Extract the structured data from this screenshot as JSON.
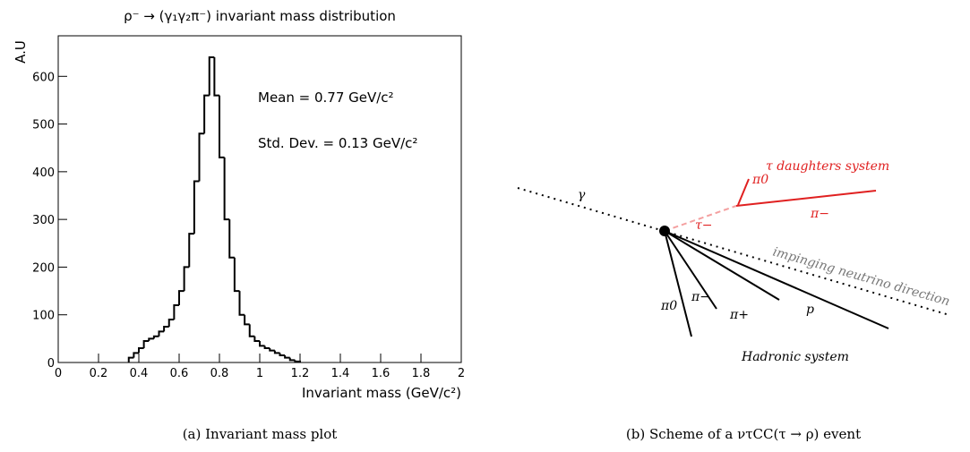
{
  "chart_data": {
    "type": "histogram",
    "title": "ρ⁻ → (γ₁γ₂π⁻) invariant mass distribution",
    "x_label": "Invariant mass (GeV/c²)",
    "y_label": "A.U",
    "annotations": [
      "Mean = 0.77 GeV/c²",
      "Std. Dev. = 0.13 GeV/c²"
    ],
    "bins": [
      0.35,
      0.375,
      0.4,
      0.425,
      0.45,
      0.475,
      0.5,
      0.525,
      0.55,
      0.575,
      0.6,
      0.625,
      0.65,
      0.675,
      0.7,
      0.725,
      0.75,
      0.775,
      0.8,
      0.825,
      0.85,
      0.875,
      0.9,
      0.925,
      0.95,
      0.975,
      1.0,
      1.025,
      1.05,
      1.075,
      1.1,
      1.125,
      1.15,
      1.175,
      1.2
    ],
    "values": [
      10,
      20,
      30,
      45,
      50,
      55,
      65,
      75,
      90,
      120,
      150,
      200,
      270,
      380,
      480,
      560,
      640,
      560,
      430,
      300,
      220,
      150,
      100,
      80,
      55,
      45,
      35,
      30,
      25,
      20,
      15,
      10,
      5,
      2
    ],
    "color": "#000000",
    "xlim": [
      0,
      2
    ],
    "xticks": [
      0,
      0.2,
      0.4,
      0.6,
      0.8,
      1,
      1.2,
      1.4,
      1.6,
      1.8,
      2
    ],
    "ylim": [
      0,
      685
    ],
    "yticks": [
      0,
      100,
      200,
      300,
      400,
      500,
      600
    ]
  },
  "diagram": {
    "labels": {
      "gamma": "γ",
      "tau_system": "τ daughters system",
      "pi0_tau": "π0",
      "tau": "τ−",
      "pim_tau": "π−",
      "neutrino": "impinging neutrino direction",
      "pi0": "π0",
      "pim": "π−",
      "pip": "π+",
      "p": "p",
      "hadronic": "Hadronic system"
    }
  },
  "captions": {
    "a": "(a) Invariant mass plot",
    "b": "(b) Scheme of a ντCC(τ → ρ) event"
  }
}
